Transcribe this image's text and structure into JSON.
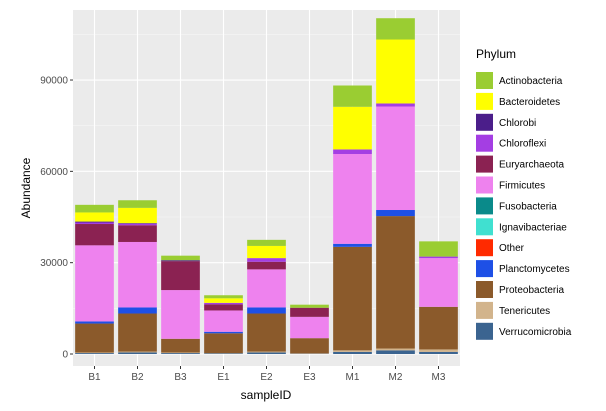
{
  "chart_data": {
    "type": "bar",
    "stacked": true,
    "xlabel": "sampleID",
    "ylabel": "Abundance",
    "ylim": [
      0,
      113000
    ],
    "yticks": [
      0,
      30000,
      60000,
      90000
    ],
    "ytick_labels": [
      "0",
      "30000",
      "60000",
      "90000"
    ],
    "grid": true,
    "legend_title": "Phylum",
    "legend_position": "right",
    "categories": [
      "B1",
      "B2",
      "B3",
      "E1",
      "E2",
      "E3",
      "M1",
      "M2",
      "M3"
    ],
    "series": [
      {
        "name": "Verrucomicrobia",
        "color": "#3b6490",
        "values": [
          300,
          500,
          300,
          200,
          500,
          100,
          700,
          1200,
          700
        ]
      },
      {
        "name": "Tenericutes",
        "color": "#d2b48c",
        "values": [
          200,
          300,
          200,
          100,
          300,
          100,
          500,
          600,
          800
        ]
      },
      {
        "name": "Proteobacteria",
        "color": "#8b5a2b",
        "values": [
          9500,
          12500,
          4500,
          6500,
          12500,
          5000,
          34000,
          43500,
          14000
        ]
      },
      {
        "name": "Planctomycetes",
        "color": "#1e50e6",
        "values": [
          700,
          2000,
          0,
          500,
          2000,
          0,
          1000,
          2000,
          0
        ]
      },
      {
        "name": "Other",
        "color": "#ff2a00",
        "values": [
          0,
          0,
          0,
          0,
          0,
          0,
          0,
          0,
          0
        ]
      },
      {
        "name": "Ignavibacteriae",
        "color": "#40e0d0",
        "values": [
          0,
          0,
          0,
          0,
          0,
          0,
          0,
          0,
          0
        ]
      },
      {
        "name": "Fusobacteria",
        "color": "#0a8a8a",
        "values": [
          0,
          0,
          0,
          0,
          0,
          0,
          0,
          0,
          0
        ]
      },
      {
        "name": "Firmicutes",
        "color": "#ee82ee",
        "values": [
          25000,
          21500,
          16000,
          7000,
          12500,
          7000,
          29500,
          34000,
          16000
        ]
      },
      {
        "name": "Euryarchaeota",
        "color": "#8b2252",
        "values": [
          7000,
          5500,
          9500,
          2000,
          2500,
          3000,
          0,
          0,
          0
        ]
      },
      {
        "name": "Chloroflexi",
        "color": "#a43ee3",
        "values": [
          500,
          500,
          0,
          500,
          1200,
          0,
          1500,
          1000,
          500
        ]
      },
      {
        "name": "Chlorobi",
        "color": "#4b1e8a",
        "values": [
          300,
          200,
          300,
          0,
          0,
          0,
          0,
          0,
          0
        ]
      },
      {
        "name": "Bacteroidetes",
        "color": "#ffff00",
        "values": [
          3000,
          5000,
          0,
          1500,
          4000,
          0,
          14000,
          21000,
          0
        ]
      },
      {
        "name": "Actinobacteria",
        "color": "#9acd32",
        "values": [
          2500,
          2500,
          1500,
          1000,
          2000,
          1000,
          7000,
          7000,
          5000
        ]
      }
    ]
  }
}
